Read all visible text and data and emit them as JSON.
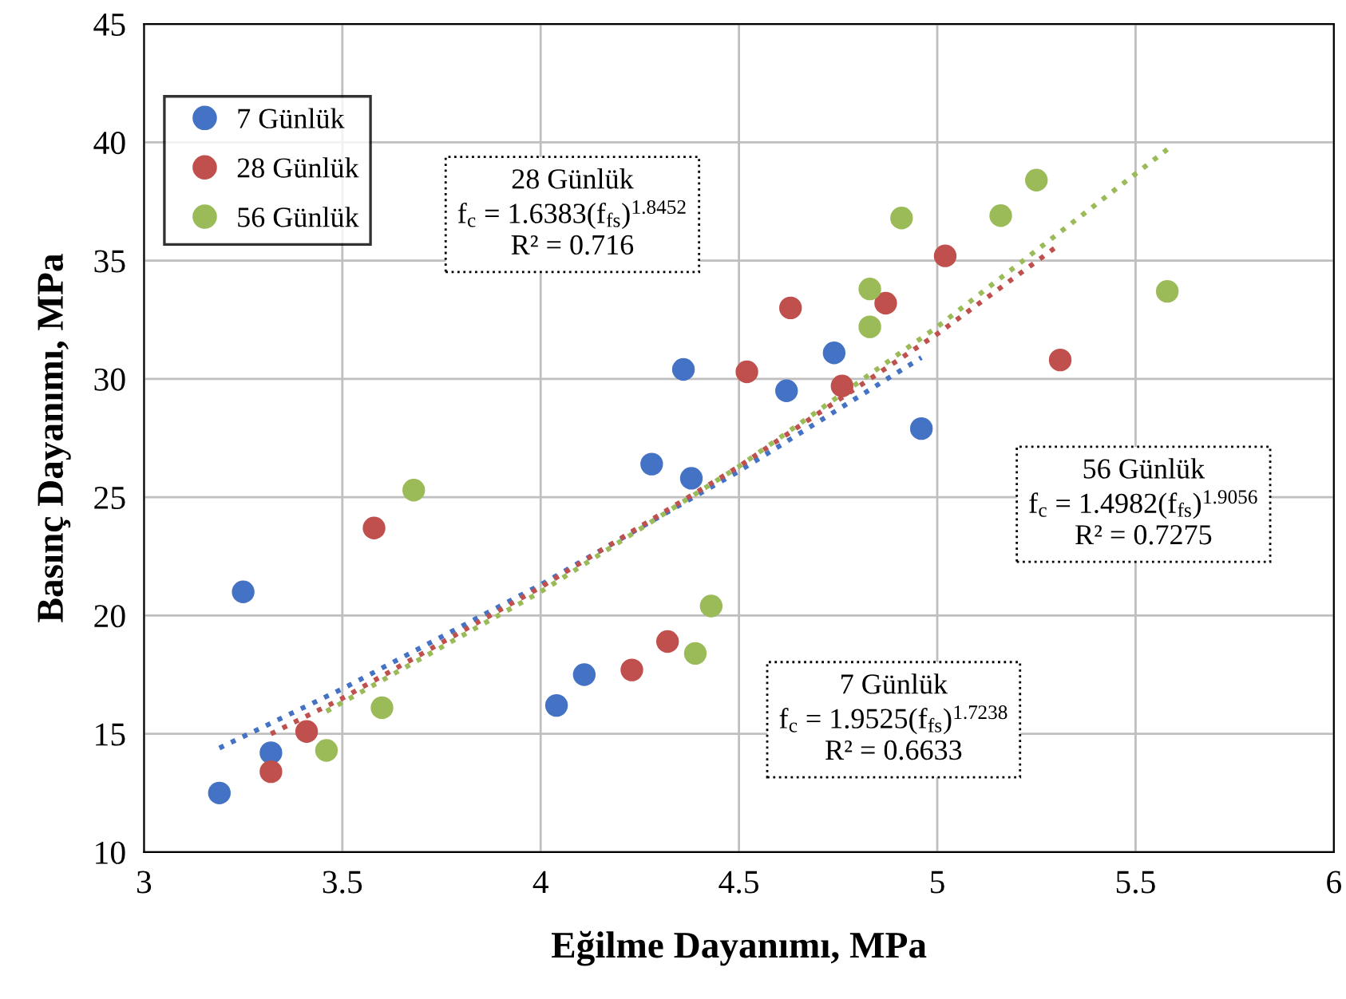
{
  "chart_data": {
    "type": "scatter",
    "xlabel": "Eğilme Dayanımı, MPa",
    "ylabel": "Basınç Dayanımı, MPa",
    "xlim": [
      3,
      6
    ],
    "xticks": [
      3,
      3.5,
      4,
      4.5,
      5,
      5.5,
      6
    ],
    "ylim": [
      10,
      45
    ],
    "yticks": [
      10,
      15,
      20,
      25,
      30,
      35,
      40,
      45
    ],
    "grid": true,
    "legend": "top left",
    "marker": "circle",
    "series": [
      {
        "name": "7 Günlük",
        "color": "#4472c4",
        "x": [
          3.19,
          3.25,
          3.32,
          4.04,
          4.11,
          4.28,
          4.36,
          4.38,
          4.62,
          4.74,
          4.96
        ],
        "values": [
          12.5,
          21.0,
          14.2,
          16.2,
          17.5,
          26.4,
          30.4,
          25.8,
          29.5,
          31.1,
          27.9
        ]
      },
      {
        "name": "28 Günlük",
        "color": "#c0504d",
        "x": [
          3.32,
          3.41,
          3.58,
          4.23,
          4.32,
          4.52,
          4.63,
          4.76,
          4.87,
          5.02,
          5.31
        ],
        "values": [
          13.4,
          15.1,
          23.7,
          17.7,
          18.9,
          30.3,
          33.0,
          29.7,
          33.2,
          35.2,
          30.8
        ]
      },
      {
        "name": "56 Günlük",
        "color": "#9bbb59",
        "x": [
          3.46,
          3.6,
          3.68,
          4.39,
          4.43,
          4.83,
          4.83,
          4.91,
          5.16,
          5.25,
          5.58
        ],
        "values": [
          14.3,
          16.1,
          25.3,
          18.4,
          20.4,
          33.8,
          32.2,
          36.8,
          36.9,
          38.4,
          33.7
        ]
      },
      {
        "type": "line",
        "marker": "none",
        "line_style": "dotted",
        "color": "#4472c4",
        "x": [
          3.19,
          3.5,
          4,
          4.5,
          4.96
        ],
        "values": [
          14.4,
          16.9,
          21.3,
          26.1,
          30.9
        ]
      },
      {
        "type": "line",
        "marker": "none",
        "line_style": "dotted",
        "color": "#c0504d",
        "x": [
          3.32,
          3.5,
          4,
          4.5,
          5,
          5.31
        ],
        "values": [
          15.0,
          16.5,
          21.2,
          26.3,
          31.9,
          35.7
        ]
      },
      {
        "type": "line",
        "marker": "none",
        "line_style": "dotted",
        "color": "#9bbb59",
        "x": [
          3.46,
          4,
          4.5,
          5,
          5.58
        ],
        "values": [
          15.95,
          21.0,
          26.3,
          32.2,
          39.7
        ]
      }
    ],
    "annotations": [
      "28 Günlük\nf$_{c}$ = 1.6383(f$_{fs}$)$^{1.8452}$\nR² = 0.716",
      "56 Günlük\nf$_{c}$ = 1.4982(f$_{fs}$)$^{1.9056}$\nR² = 0.7275",
      "7 Günlük\nf$_{c}$ = 1.9525(f$_{fs}$)$^{1.7238}$\nR² = 0.6633"
    ]
  }
}
